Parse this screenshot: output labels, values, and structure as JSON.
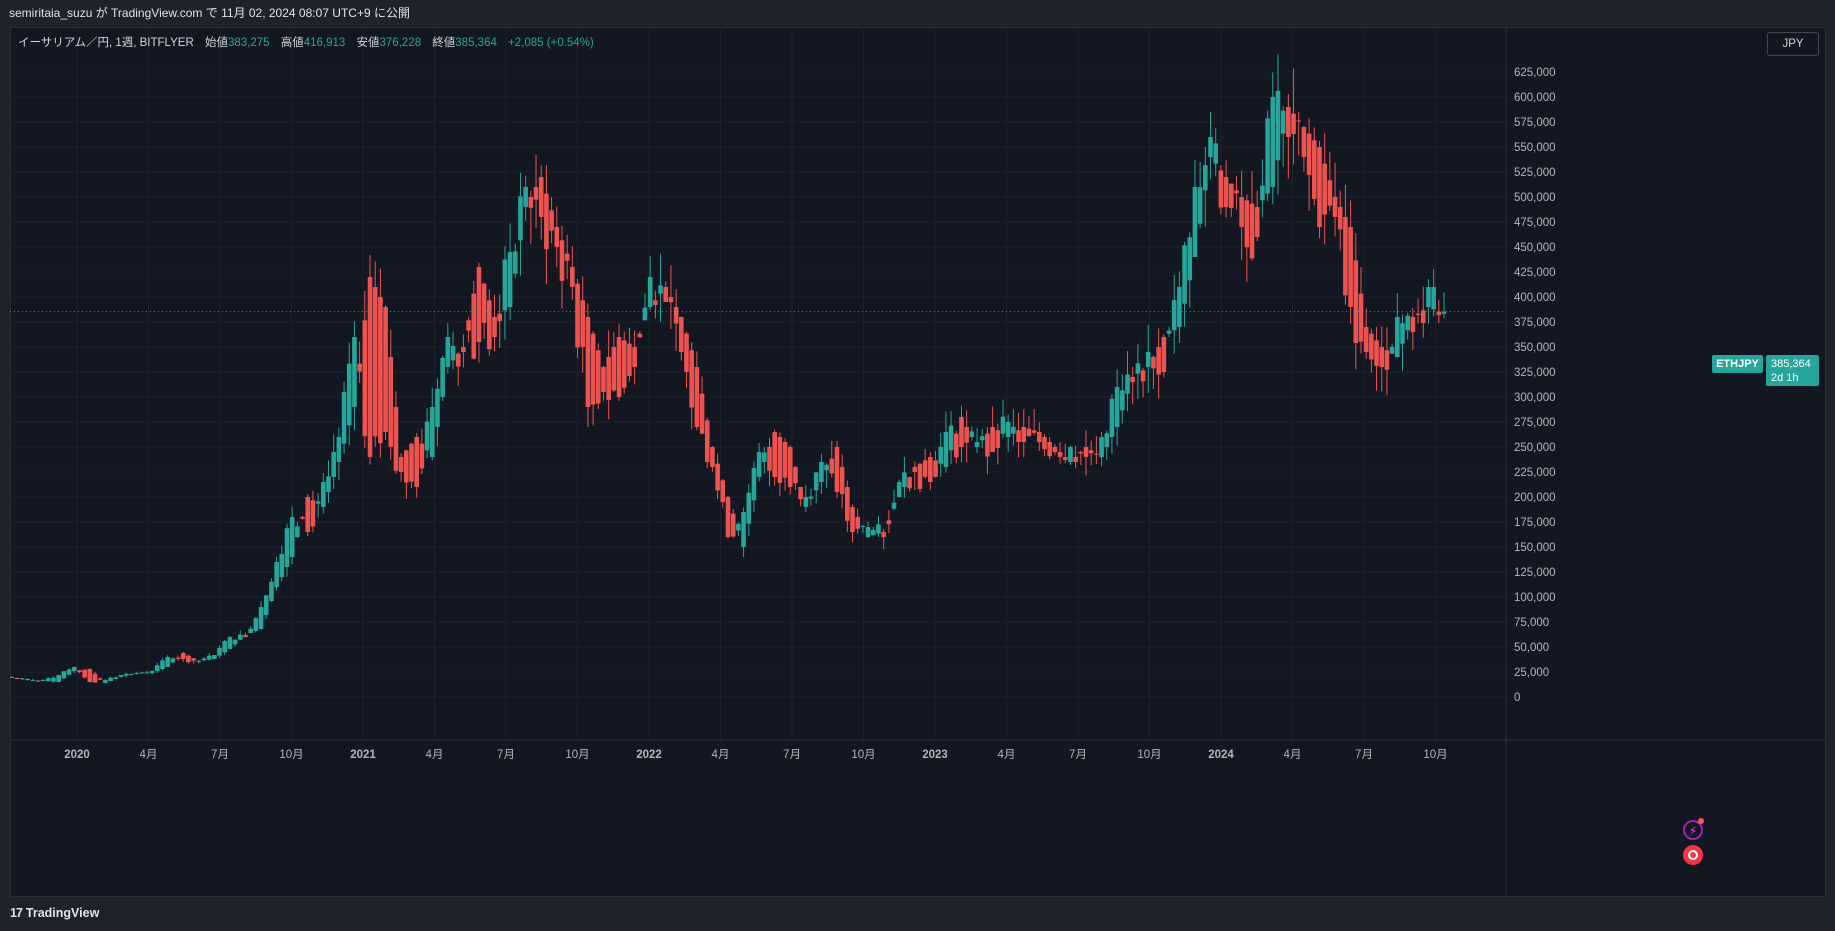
{
  "header": {
    "published_text": "semiritaia_suzu が TradingView.com で 11月 02, 2024 08:07 UTC+9 に公開"
  },
  "legend": {
    "symbol_text": "イーサリアム／円, 1週, BITFLYER",
    "open_label": "始値",
    "open_value": "383,275",
    "high_label": "高値",
    "high_value": "416,913",
    "low_label": "安値",
    "low_value": "376,228",
    "close_label": "終値",
    "close_value": "385,364",
    "change_value": "+2,085 (+0.54%)"
  },
  "currency_button": "JPY",
  "price_scale": {
    "symbol_tag": "ETHJPY",
    "last_price": "385,364",
    "countdown": "2d 1h"
  },
  "footer": {
    "logo_mark": "17",
    "brand": "TradingView"
  },
  "colors": {
    "up": "#26a69a",
    "down": "#ef5350",
    "background": "#131722",
    "grid": "#1e222d"
  },
  "chart_data": {
    "type": "candlestick",
    "symbol": "ETHJPY",
    "exchange": "BITFLYER",
    "interval": "1週",
    "y_ticks": [
      "625,000",
      "600,000",
      "575,000",
      "550,000",
      "525,000",
      "500,000",
      "475,000",
      "450,000",
      "425,000",
      "400,000",
      "375,000",
      "350,000",
      "325,000",
      "300,000",
      "275,000",
      "250,000",
      "225,000",
      "200,000",
      "175,000",
      "150,000",
      "125,000",
      "100,000",
      "75,000",
      "50,000",
      "25,000",
      "0"
    ],
    "x_ticks": [
      "2020",
      "4月",
      "7月",
      "10月",
      "2021",
      "4月",
      "7月",
      "10月",
      "2022",
      "4月",
      "7月",
      "10月",
      "2023",
      "4月",
      "7月",
      "10月",
      "2024",
      "4月",
      "7月",
      "10月"
    ],
    "ylim": [
      -25000,
      650000
    ],
    "last_price": 385364,
    "close_path": [
      [
        20000,
        20000
      ],
      [
        17000,
        18000
      ],
      [
        16000,
        17000
      ],
      [
        15000,
        22000
      ],
      [
        26000,
        30000
      ],
      [
        28000,
        15000
      ],
      [
        14000,
        17000
      ],
      [
        20000,
        22000
      ],
      [
        24000,
        24000
      ],
      [
        24000,
        26000
      ],
      [
        30000,
        40000
      ],
      [
        44000,
        38000
      ],
      [
        36000,
        36000
      ],
      [
        38000,
        42000
      ],
      [
        48000,
        60000
      ],
      [
        62000,
        60000
      ],
      [
        68000,
        90000
      ],
      [
        110000,
        135000
      ],
      [
        140000,
        180000
      ],
      [
        200000,
        165000
      ],
      [
        190000,
        215000
      ],
      [
        235000,
        260000
      ],
      [
        290000,
        360000
      ],
      [
        420000,
        240000
      ],
      [
        390000,
        265000
      ],
      [
        240000,
        225000
      ],
      [
        260000,
        210000
      ],
      [
        240000,
        290000
      ],
      [
        330000,
        360000
      ],
      [
        350000,
        345000
      ],
      [
        430000,
        355000
      ],
      [
        380000,
        360000
      ],
      [
        390000,
        445000
      ],
      [
        490000,
        510000
      ],
      [
        520000,
        480000
      ],
      [
        470000,
        450000
      ],
      [
        430000,
        410000
      ],
      [
        380000,
        290000
      ],
      [
        330000,
        305000
      ],
      [
        360000,
        300000
      ],
      [
        350000,
        330000
      ],
      [
        390000,
        420000
      ],
      [
        410000,
        395000
      ],
      [
        380000,
        345000
      ],
      [
        330000,
        270000
      ],
      [
        250000,
        230000
      ],
      [
        200000,
        160000
      ],
      [
        150000,
        185000
      ],
      [
        220000,
        245000
      ],
      [
        265000,
        220000
      ],
      [
        250000,
        210000
      ],
      [
        190000,
        200000
      ],
      [
        215000,
        235000
      ],
      [
        250000,
        205000
      ],
      [
        190000,
        165000
      ],
      [
        160000,
        170000
      ],
      [
        165000,
        160000
      ],
      [
        200000,
        215000
      ],
      [
        230000,
        225000
      ],
      [
        240000,
        215000
      ],
      [
        230000,
        265000
      ],
      [
        280000,
        250000
      ],
      [
        250000,
        255000
      ],
      [
        270000,
        245000
      ],
      [
        260000,
        275000
      ],
      [
        270000,
        255000
      ],
      [
        265000,
        255000
      ],
      [
        250000,
        245000
      ],
      [
        235000,
        250000
      ],
      [
        250000,
        240000
      ],
      [
        240000,
        260000
      ],
      [
        270000,
        310000
      ],
      [
        320000,
        315000
      ],
      [
        330000,
        345000
      ],
      [
        360000,
        325000
      ],
      [
        370000,
        410000
      ],
      [
        440000,
        510000
      ],
      [
        540000,
        560000
      ],
      [
        520000,
        490000
      ],
      [
        500000,
        470000
      ],
      [
        490000,
        460000
      ],
      [
        510000,
        600000
      ],
      [
        590000,
        560000
      ],
      [
        570000,
        540000
      ],
      [
        550000,
        470000
      ],
      [
        500000,
        480000
      ],
      [
        470000,
        390000
      ],
      [
        370000,
        345000
      ],
      [
        350000,
        330000
      ],
      [
        340000,
        380000
      ],
      [
        380000,
        365000
      ],
      [
        390000,
        410000
      ],
      [
        383275,
        385364
      ]
    ]
  }
}
